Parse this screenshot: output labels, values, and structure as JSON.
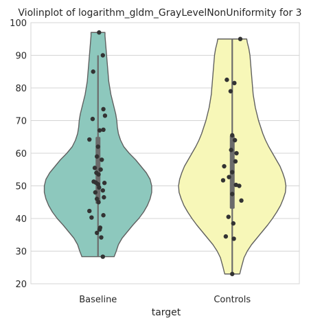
{
  "chart_data": {
    "type": "violin",
    "title": "Violinplot of logarithm_gldm_GrayLevelNonUniformity for 3",
    "xlabel": "target",
    "ylabel": "",
    "categories": [
      "Baseline",
      "Controls"
    ],
    "ylim": [
      20,
      100
    ],
    "yticks": [
      20,
      30,
      40,
      50,
      60,
      70,
      80,
      90,
      100
    ],
    "grid": true,
    "colors": {
      "Baseline": "#8dc8bd",
      "Controls": "#f7f7b8",
      "outline": "#5f5f5f",
      "box": "#6b6b6b",
      "points": "#333333",
      "grid": "#d4d4d4"
    },
    "violins": [
      {
        "category": "Baseline",
        "range": [
          28.3,
          97.0
        ],
        "q1": 44.5,
        "median": 52.0,
        "q3": 65.0,
        "whisker": [
          28.3,
          90.0
        ],
        "profile": [
          [
            28.3,
            0.3
          ],
          [
            30,
            0.34
          ],
          [
            32,
            0.38
          ],
          [
            34,
            0.45
          ],
          [
            36,
            0.55
          ],
          [
            38,
            0.65
          ],
          [
            40,
            0.76
          ],
          [
            42,
            0.85
          ],
          [
            44,
            0.92
          ],
          [
            46,
            0.97
          ],
          [
            48,
            1.0
          ],
          [
            50,
            1.0
          ],
          [
            52,
            0.97
          ],
          [
            54,
            0.9
          ],
          [
            56,
            0.8
          ],
          [
            58,
            0.7
          ],
          [
            60,
            0.58
          ],
          [
            62,
            0.48
          ],
          [
            64,
            0.42
          ],
          [
            66,
            0.38
          ],
          [
            68,
            0.36
          ],
          [
            70,
            0.35
          ],
          [
            72,
            0.33
          ],
          [
            74,
            0.3
          ],
          [
            76,
            0.27
          ],
          [
            78,
            0.24
          ],
          [
            80,
            0.22
          ],
          [
            82,
            0.2
          ],
          [
            84,
            0.19
          ],
          [
            86,
            0.18
          ],
          [
            88,
            0.17
          ],
          [
            90,
            0.16
          ],
          [
            92,
            0.15
          ],
          [
            94,
            0.14
          ],
          [
            96,
            0.13
          ],
          [
            97.0,
            0.13
          ]
        ],
        "points": [
          [
            0.02,
            97.0
          ],
          [
            0.09,
            90.0
          ],
          [
            -0.09,
            85.0
          ],
          [
            0.1,
            73.5
          ],
          [
            0.13,
            71.5
          ],
          [
            -0.1,
            70.5
          ],
          [
            0.03,
            67.0
          ],
          [
            0.1,
            67.2
          ],
          [
            -0.16,
            64.2
          ],
          [
            0.0,
            62.0
          ],
          [
            -0.02,
            59.0
          ],
          [
            0.07,
            58.0
          ],
          [
            -0.06,
            55.5
          ],
          [
            0.05,
            55.0
          ],
          [
            -0.03,
            54.0
          ],
          [
            0.01,
            53.5
          ],
          [
            -0.08,
            51.3
          ],
          [
            0.12,
            50.9
          ],
          [
            -0.04,
            51.0
          ],
          [
            0.0,
            50.5
          ],
          [
            0.02,
            49.5
          ],
          [
            0.09,
            48.6
          ],
          [
            -0.05,
            48.0
          ],
          [
            0.11,
            46.5
          ],
          [
            -0.02,
            46.0
          ],
          [
            0.01,
            45.0
          ],
          [
            -0.16,
            42.3
          ],
          [
            0.1,
            41.0
          ],
          [
            -0.12,
            40.3
          ],
          [
            0.04,
            37.2
          ],
          [
            0.03,
            36.6
          ],
          [
            -0.02,
            35.6
          ],
          [
            0.06,
            34.2
          ],
          [
            0.09,
            28.3
          ]
        ]
      },
      {
        "category": "Controls",
        "range": [
          23.0,
          95.0
        ],
        "q1": 43.0,
        "median": 54.0,
        "q3": 65.5,
        "whisker": [
          23.0,
          95.0
        ],
        "profile": [
          [
            23.0,
            0.14
          ],
          [
            25,
            0.17
          ],
          [
            28,
            0.22
          ],
          [
            30,
            0.28
          ],
          [
            32,
            0.36
          ],
          [
            34,
            0.46
          ],
          [
            36,
            0.56
          ],
          [
            38,
            0.66
          ],
          [
            40,
            0.75
          ],
          [
            42,
            0.83
          ],
          [
            44,
            0.9
          ],
          [
            46,
            0.95
          ],
          [
            48,
            0.99
          ],
          [
            50,
            1.0
          ],
          [
            52,
            0.98
          ],
          [
            54,
            0.94
          ],
          [
            56,
            0.89
          ],
          [
            58,
            0.82
          ],
          [
            60,
            0.75
          ],
          [
            62,
            0.68
          ],
          [
            64,
            0.62
          ],
          [
            66,
            0.57
          ],
          [
            68,
            0.53
          ],
          [
            70,
            0.49
          ],
          [
            72,
            0.46
          ],
          [
            74,
            0.43
          ],
          [
            76,
            0.41
          ],
          [
            78,
            0.39
          ],
          [
            80,
            0.38
          ],
          [
            82,
            0.37
          ],
          [
            84,
            0.36
          ],
          [
            86,
            0.35
          ],
          [
            88,
            0.34
          ],
          [
            90,
            0.33
          ],
          [
            92,
            0.31
          ],
          [
            94,
            0.28
          ],
          [
            95.0,
            0.27
          ]
        ],
        "points": [
          [
            0.15,
            95.0
          ],
          [
            -0.1,
            82.5
          ],
          [
            0.04,
            81.5
          ],
          [
            -0.03,
            79.0
          ],
          [
            0.0,
            65.5
          ],
          [
            0.05,
            64.0
          ],
          [
            -0.02,
            61.0
          ],
          [
            0.08,
            60.0
          ],
          [
            0.06,
            57.5
          ],
          [
            -0.15,
            56.0
          ],
          [
            0.0,
            54.2
          ],
          [
            -0.06,
            52.7
          ],
          [
            -0.17,
            51.7
          ],
          [
            0.07,
            50.3
          ],
          [
            0.13,
            50.0
          ],
          [
            0.0,
            47.5
          ],
          [
            0.17,
            45.5
          ],
          [
            -0.07,
            40.5
          ],
          [
            0.02,
            38.5
          ],
          [
            -0.12,
            34.5
          ],
          [
            0.03,
            33.8
          ],
          [
            0.0,
            23.0
          ]
        ]
      }
    ]
  }
}
